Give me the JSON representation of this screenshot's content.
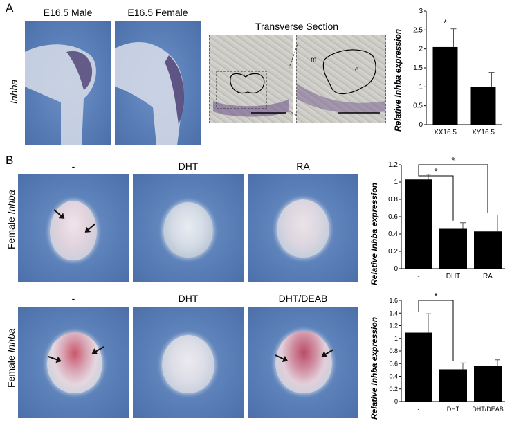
{
  "panel_a": {
    "letter": "A",
    "gene_label": "Inhba",
    "titles": [
      "E16.5 Male",
      "E16.5 Female",
      "Transverse Section"
    ],
    "micro_labels": [
      "m",
      "e"
    ]
  },
  "panel_b": {
    "letter": "B",
    "row_label_prefix": "Female",
    "row_label_gene": "Inhba",
    "row1_titles": [
      "-",
      "DHT",
      "RA"
    ],
    "row2_titles": [
      "-",
      "DHT",
      "DHT/DEAB"
    ]
  },
  "chart_data": [
    {
      "type": "bar",
      "ylabel": "Relative Inhba expression",
      "categories": [
        "XX16.5",
        "XY16.5"
      ],
      "values": [
        2.05,
        1.0
      ],
      "errors": [
        0.48,
        0.38
      ],
      "ylim": [
        0,
        3
      ],
      "yticks": [
        "0",
        "0.5",
        "1",
        "1.5",
        "2",
        "2.5",
        "3"
      ],
      "annotations": [
        "*"
      ],
      "grid": false
    },
    {
      "type": "bar",
      "ylabel": "Relative Inhba expression",
      "categories": [
        "-",
        "DHT",
        "RA"
      ],
      "values": [
        1.03,
        0.46,
        0.43
      ],
      "errors": [
        0.06,
        0.07,
        0.19
      ],
      "ylim": [
        0,
        1.2
      ],
      "yticks": [
        "0",
        "0.2",
        "0.4",
        "0.6",
        "0.8",
        "1",
        "1.2"
      ],
      "annotations": [
        "*",
        "*"
      ],
      "grid": false
    },
    {
      "type": "bar",
      "ylabel": "Relative Inhba expression",
      "categories": [
        "-",
        "DHT",
        "DHT/DEAB"
      ],
      "values": [
        1.09,
        0.51,
        0.56
      ],
      "errors": [
        0.3,
        0.1,
        0.1
      ],
      "ylim": [
        0,
        1.6
      ],
      "yticks": [
        "0",
        "0.2",
        "0.4",
        "0.6",
        "0.8",
        "1",
        "1.2",
        "1.4",
        "1.6"
      ],
      "annotations": [
        "*"
      ],
      "grid": false
    }
  ]
}
